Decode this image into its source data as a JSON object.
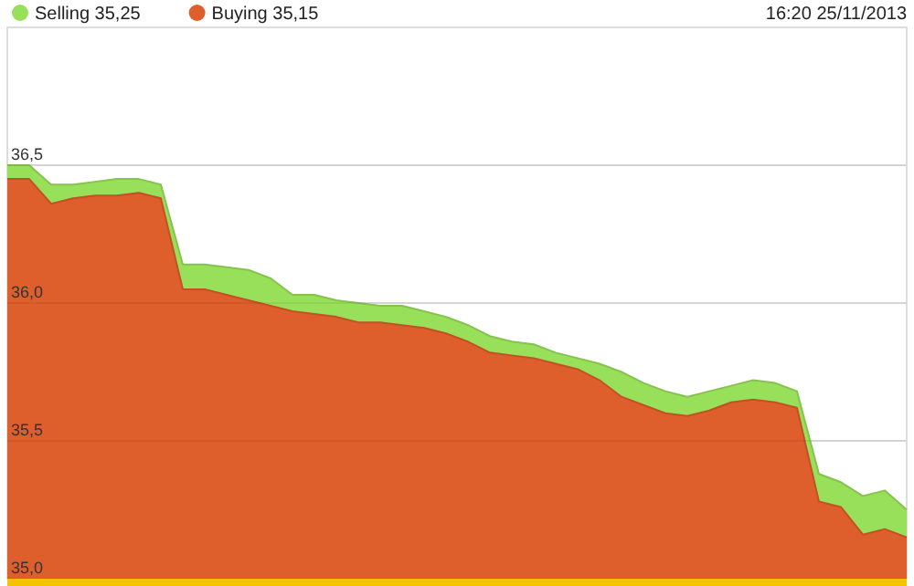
{
  "chart_data": {
    "type": "area",
    "categories": [
      null,
      null,
      null,
      null,
      null,
      null,
      null,
      null,
      null,
      null,
      null,
      null,
      null,
      null,
      null,
      null,
      null,
      null,
      null,
      null,
      null,
      null,
      null,
      null,
      null,
      null,
      null,
      null,
      null,
      null,
      null,
      null,
      null,
      null,
      null,
      null,
      null,
      null,
      null,
      null,
      null,
      null
    ],
    "series": [
      {
        "name": "Selling 35,25",
        "color": "#99e05a",
        "values": [
          36.5,
          36.5,
          36.43,
          36.43,
          36.44,
          36.45,
          36.45,
          36.43,
          36.14,
          36.14,
          36.13,
          36.12,
          36.09,
          36.03,
          36.03,
          36.01,
          36.0,
          35.99,
          35.99,
          35.97,
          35.95,
          35.92,
          35.88,
          35.86,
          35.85,
          35.82,
          35.8,
          35.78,
          35.75,
          35.71,
          35.68,
          35.66,
          35.68,
          35.7,
          35.72,
          35.71,
          35.68,
          35.38,
          35.35,
          35.3,
          35.32,
          35.25
        ]
      },
      {
        "name": "Buying 35,15",
        "color": "#de5f2c",
        "values": [
          36.45,
          36.45,
          36.36,
          36.38,
          36.39,
          36.39,
          36.4,
          36.38,
          36.05,
          36.05,
          36.03,
          36.01,
          35.99,
          35.97,
          35.96,
          35.95,
          35.93,
          35.93,
          35.92,
          35.91,
          35.89,
          35.86,
          35.82,
          35.81,
          35.8,
          35.78,
          35.76,
          35.72,
          35.66,
          35.63,
          35.6,
          35.59,
          35.61,
          35.64,
          35.65,
          35.64,
          35.62,
          35.28,
          35.26,
          35.16,
          35.18,
          35.15
        ]
      }
    ],
    "ylim": [
      35,
      37
    ],
    "yticks": [
      {
        "value": 35,
        "label": "35,0"
      },
      {
        "value": 35.5,
        "label": "35,5"
      },
      {
        "value": 36,
        "label": "36,0"
      },
      {
        "value": 36.5,
        "label": "36,5"
      }
    ],
    "grid": "y",
    "legend": "top left",
    "annotations": [
      "16:20 25/11/2013"
    ]
  }
}
